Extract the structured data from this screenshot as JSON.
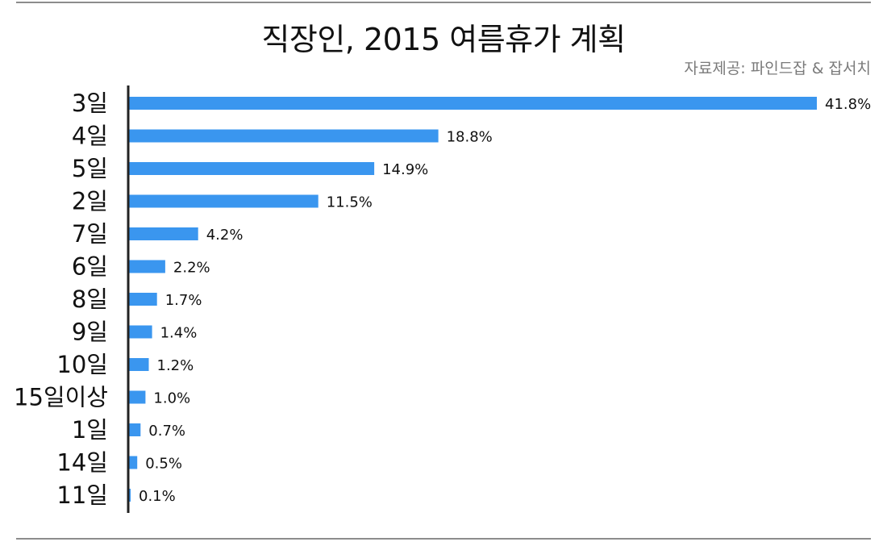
{
  "header": {
    "title": "직장인, 2015 여름휴가 계획",
    "source": "자료제공: 파인드잡 & 잡서치"
  },
  "colors": {
    "bar": "#3a96ef",
    "axis": "#222222",
    "rule": "#8c8c8c"
  },
  "chart_data": {
    "type": "bar",
    "orientation": "horizontal",
    "title": "직장인, 2015 여름휴가 계획",
    "xlabel": "",
    "ylabel": "",
    "xlim": [
      0,
      41.8
    ],
    "grid": false,
    "legend": "none",
    "categories": [
      "3일",
      "4일",
      "5일",
      "2일",
      "7일",
      "6일",
      "8일",
      "9일",
      "10일",
      "15일이상",
      "1일",
      "14일",
      "11일"
    ],
    "values": [
      41.8,
      18.8,
      14.9,
      11.5,
      4.2,
      2.2,
      1.7,
      1.4,
      1.2,
      1.0,
      0.7,
      0.5,
      0.1
    ],
    "value_labels": [
      "41.8%",
      "18.8%",
      "14.9%",
      "11.5%",
      "4.2%",
      "2.2%",
      "1.7%",
      "1.4%",
      "1.2%",
      "1.0%",
      "0.7%",
      "0.5%",
      "0.1%"
    ]
  }
}
